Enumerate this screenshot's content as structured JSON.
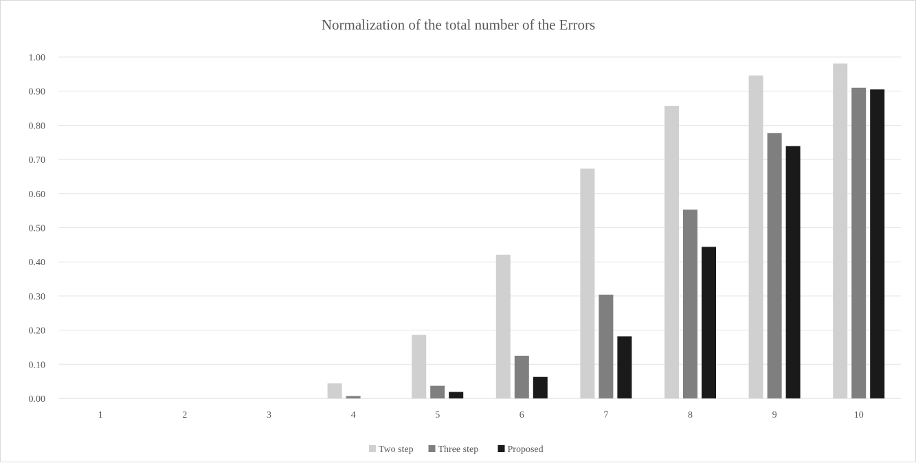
{
  "chart_data": {
    "type": "bar",
    "title": "Normalization of the total number of the Errors",
    "xlabel": "",
    "ylabel": "",
    "categories": [
      "1",
      "2",
      "3",
      "4",
      "5",
      "6",
      "7",
      "8",
      "9",
      "10"
    ],
    "ylim": [
      0,
      1.0
    ],
    "yticks": [
      "0.00",
      "0.10",
      "0.20",
      "0.30",
      "0.40",
      "0.50",
      "0.60",
      "0.70",
      "0.80",
      "0.90",
      "1.00"
    ],
    "grid": true,
    "legend_position": "bottom",
    "series": [
      {
        "name": "Two step",
        "color": "#d0d0d0",
        "values": [
          0,
          0,
          0,
          0.044,
          0.186,
          0.421,
          0.673,
          0.857,
          0.946,
          0.981
        ]
      },
      {
        "name": "Three step",
        "color": "#7f7f7f",
        "values": [
          0,
          0,
          0,
          0.007,
          0.037,
          0.125,
          0.304,
          0.553,
          0.777,
          0.91
        ]
      },
      {
        "name": "Proposed",
        "color": "#1a1a1a",
        "values": [
          0,
          0,
          0,
          0,
          0.019,
          0.063,
          0.182,
          0.444,
          0.739,
          0.905
        ]
      }
    ]
  }
}
